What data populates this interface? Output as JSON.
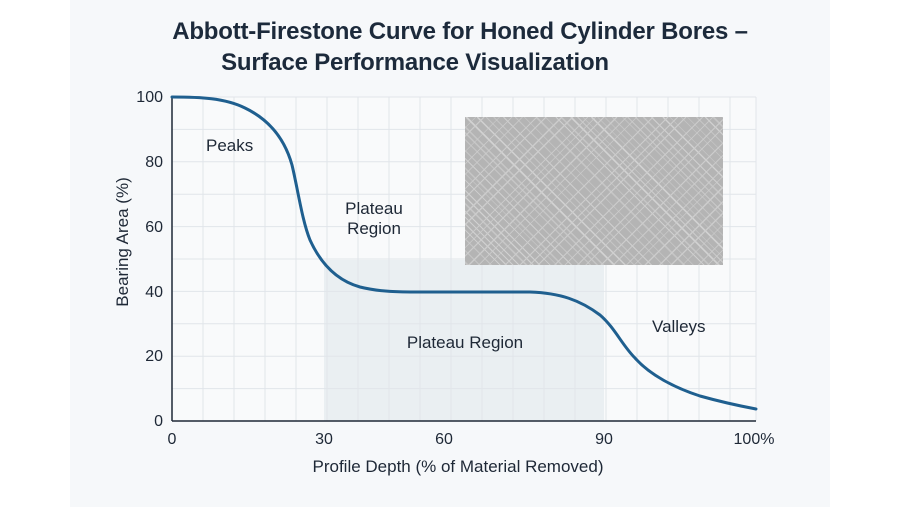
{
  "title_line1": "Abbott-Firestone Curve for Honed Cylinder Bores –",
  "title_line2": "Surface Performance Visualization",
  "chart_data": {
    "type": "line",
    "title": "Abbott-Firestone Curve for Honed Cylinder Bores – Surface Performance Visualization",
    "xlabel": "Profile Depth (% of Material Removed)",
    "ylabel": "Bearing Area (%)",
    "xlim": [
      0,
      100
    ],
    "ylim": [
      0,
      100
    ],
    "x_tick_labels": [
      "0",
      "30",
      "60",
      "90",
      "100%"
    ],
    "y_tick_labels": [
      "0",
      "20",
      "40",
      "60",
      "80",
      "100"
    ],
    "grid": true,
    "series": [
      {
        "name": "Bearing Area Curve",
        "color": "#1f5f8f",
        "x": [
          0,
          5,
          10,
          15,
          18,
          20,
          21,
          22,
          24,
          26,
          28,
          32,
          38,
          45,
          55,
          65,
          70,
          74,
          77,
          80,
          82,
          85,
          88,
          92,
          96,
          100
        ],
        "y": [
          100,
          99.5,
          97.5,
          92,
          86,
          78,
          70,
          62,
          52,
          46,
          43,
          40.5,
          39.5,
          39.5,
          39.5,
          39,
          38,
          35,
          30,
          22,
          17,
          13,
          10,
          7,
          5,
          3.5
        ]
      }
    ],
    "shaded_regions": [
      {
        "label": "Plateau Region",
        "x_start_px_label": "30",
        "x_end_px_label": "90",
        "color": "#e9edf1"
      }
    ],
    "annotations": [
      "Peaks",
      "Plateau Region",
      "Plateau Region",
      "Valleys"
    ],
    "inset": {
      "description": "Cross-hatched honed surface texture image",
      "color": "#b4b4b4"
    }
  },
  "annotations": {
    "peaks": "Peaks",
    "plateau_upper_line1": "Plateau",
    "plateau_upper_line2": "Region",
    "plateau_lower": "Plateau Region",
    "valleys": "Valleys"
  },
  "axes": {
    "x_title": "Profile Depth (% of Material Removed)",
    "y_title": "Bearing Area (%)",
    "x_ticks": [
      "0",
      "30",
      "60",
      "90",
      "100%"
    ],
    "y_ticks": [
      "100",
      "80",
      "60",
      "40",
      "20",
      "0"
    ]
  }
}
